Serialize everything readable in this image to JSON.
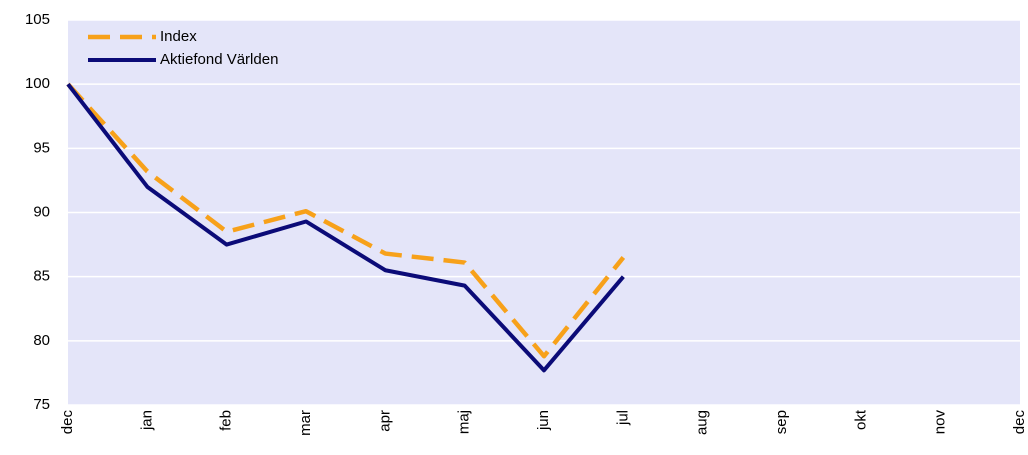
{
  "chart_data": {
    "type": "line",
    "categories": [
      "dec",
      "jan",
      "feb",
      "mar",
      "apr",
      "maj",
      "jun",
      "jul",
      "aug",
      "sep",
      "okt",
      "nov",
      "dec"
    ],
    "series": [
      {
        "name": "Index",
        "color": "#f7a11a",
        "dashed": true,
        "values": [
          100,
          93.2,
          88.5,
          90.1,
          86.8,
          86.1,
          78.8,
          86.5,
          null,
          null,
          null,
          null,
          null
        ]
      },
      {
        "name": "Aktiefond Världen",
        "color": "#0b0b78",
        "dashed": false,
        "values": [
          100,
          92,
          87.5,
          89.3,
          85.5,
          84.3,
          77.7,
          85,
          null,
          null,
          null,
          null,
          null
        ]
      }
    ],
    "ylim": [
      75,
      105
    ],
    "yticks": [
      75,
      80,
      85,
      90,
      95,
      100,
      105
    ],
    "grid": true,
    "plot_background": "#e4e5f9"
  }
}
